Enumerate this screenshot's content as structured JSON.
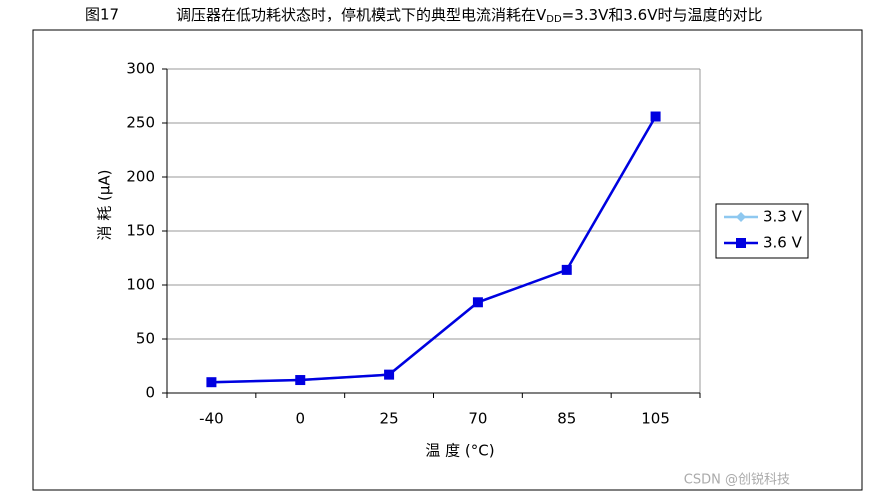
{
  "chart_data": {
    "type": "line",
    "title_parts": [
      "图17",
      "调压器在低功耗状态时，停机模式下的典型电流消耗在V",
      "DD",
      "=3.3V和3.6V时与温度的对比"
    ],
    "x_label": "温 度 (°C)",
    "y_label": "消 耗 (μA)",
    "categories": [
      "-40",
      "0",
      "25",
      "70",
      "85",
      "105"
    ],
    "series": [
      {
        "name": "3.3 V",
        "color": "#8ec8f0",
        "marker": "diamond",
        "values": [
          10,
          12,
          17,
          84,
          114,
          256
        ]
      },
      {
        "name": "3.6 V",
        "color": "#0000e0",
        "marker": "square",
        "values": [
          10,
          12,
          17,
          84,
          114,
          256
        ]
      }
    ],
    "ylim": [
      0,
      300
    ],
    "yticks": [
      0,
      50,
      100,
      150,
      200,
      250,
      300
    ],
    "grid": true,
    "legend": "right",
    "watermark": "CSDN @创锐科技"
  }
}
